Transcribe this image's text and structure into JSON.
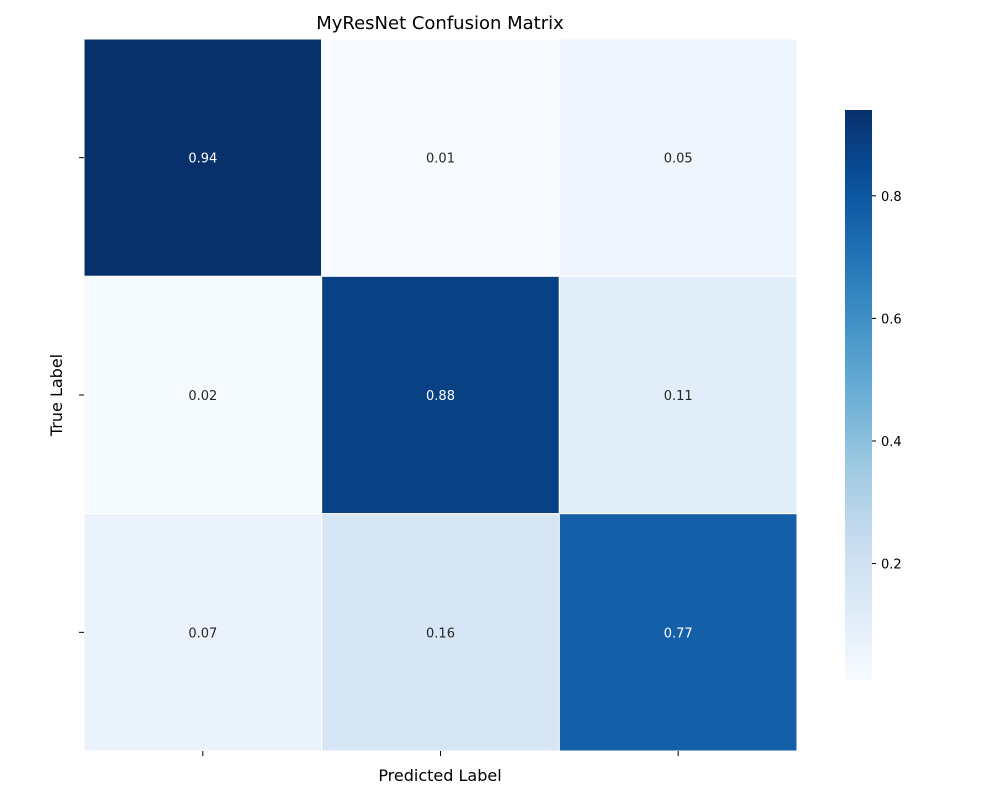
{
  "chart_data": {
    "type": "heatmap",
    "title": "MyResNet Confusion Matrix",
    "xlabel": "Predicted Label",
    "ylabel": "True Label",
    "x_tick_labels": [
      "",
      "",
      ""
    ],
    "y_tick_labels": [
      "",
      "",
      ""
    ],
    "matrix": [
      [
        0.94,
        0.01,
        0.05
      ],
      [
        0.02,
        0.88,
        0.11
      ],
      [
        0.07,
        0.16,
        0.77
      ]
    ],
    "value_format": "2 decimals",
    "colormap": "Blues",
    "colorbar": {
      "range": [
        0.01,
        0.94
      ],
      "ticks": [
        0.2,
        0.4,
        0.6,
        0.8
      ],
      "tick_labels": [
        "0.2",
        "0.4",
        "0.6",
        "0.8"
      ]
    },
    "grid": false,
    "cell_border_color": "#ffffff"
  }
}
